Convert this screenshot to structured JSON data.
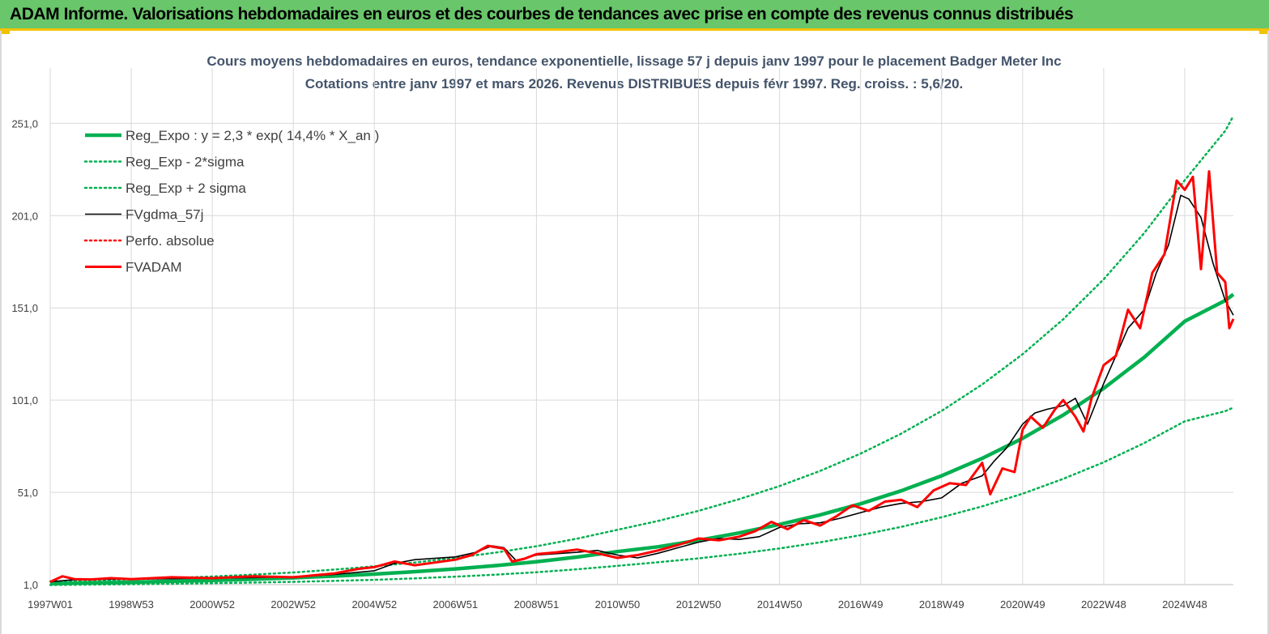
{
  "banner": {
    "title": "ADAM Informe. Valorisations hebdomadaires en euros et des courbes de tendances avec prise en compte des revenus connus distribués"
  },
  "colors": {
    "banner_bg": "#69c66a",
    "banner_border": "#f2c200",
    "reg_expo": "#00b050",
    "fvgdma": "#000000",
    "fvadam": "#ff0000",
    "perfo": "#ff0000",
    "gridline": "#d9d9d9",
    "title_text": "#44546a"
  },
  "chart_data": {
    "type": "line",
    "title": "Cours moyens hebdomadaires en euros, tendance exponentielle, lissage 57 j depuis janv 1997 pour le placement Badger Meter Inc",
    "subtitle": "Cotations entre janv 1997 et mars 2026. Revenus DISTRIBUES depuis févr 1997. Reg. croiss. : 5,6/20.",
    "xlabel": "",
    "ylabel": "",
    "x_range": [
      1997.0,
      2026.2
    ],
    "ylim": [
      1.0,
      281.0
    ],
    "y_ticks": [
      "1,0",
      "51,0",
      "101,0",
      "151,0",
      "201,0",
      "251,0"
    ],
    "y_tick_values": [
      1,
      51,
      101,
      151,
      201,
      251
    ],
    "x_ticks": [
      {
        "label": "1997W01",
        "x": 1997.0
      },
      {
        "label": "1998W53",
        "x": 1999.0
      },
      {
        "label": "2000W52",
        "x": 2001.0
      },
      {
        "label": "2002W52",
        "x": 2003.0
      },
      {
        "label": "2004W52",
        "x": 2005.0
      },
      {
        "label": "2006W51",
        "x": 2007.0
      },
      {
        "label": "2008W51",
        "x": 2009.0
      },
      {
        "label": "2010W50",
        "x": 2011.0
      },
      {
        "label": "2012W50",
        "x": 2013.0
      },
      {
        "label": "2014W50",
        "x": 2015.0
      },
      {
        "label": "2016W49",
        "x": 2017.0
      },
      {
        "label": "2018W49",
        "x": 2019.0
      },
      {
        "label": "2020W49",
        "x": 2021.0
      },
      {
        "label": "2022W48",
        "x": 2023.0
      },
      {
        "label": "2024W48",
        "x": 2025.0
      }
    ],
    "grid": true,
    "legend_position": "top-left",
    "series": [
      {
        "name": "Reg_Expo : y = 2,3 * exp( 14,4% *  X_an )",
        "style": "solid-thick",
        "color": "#00b050",
        "x": [
          1997,
          1998,
          1999,
          2000,
          2001,
          2002,
          2003,
          2004,
          2005,
          2006,
          2007,
          2008,
          2009,
          2010,
          2011,
          2012,
          2013,
          2014,
          2015,
          2016,
          2017,
          2018,
          2019,
          2020,
          2021,
          2022,
          2023,
          2024,
          2025,
          2026,
          2026.2
        ],
        "y": [
          1.5,
          1.9,
          2.3,
          2.8,
          3.3,
          3.9,
          4.7,
          5.6,
          6.7,
          8.0,
          9.5,
          11.3,
          13.4,
          15.9,
          18.9,
          21.5,
          25.0,
          29.0,
          33.6,
          38.8,
          44.8,
          51.8,
          60.0,
          69.4,
          80.3,
          92.9,
          107.4,
          124.2,
          143.7,
          155.0,
          158.3
        ]
      },
      {
        "name": "Reg_Exp - 2*sigma",
        "style": "dotted",
        "color": "#00b050",
        "x": [
          1997,
          1998,
          1999,
          2000,
          2001,
          2002,
          2003,
          2004,
          2005,
          2006,
          2007,
          2008,
          2009,
          2010,
          2011,
          2012,
          2013,
          2014,
          2015,
          2016,
          2017,
          2018,
          2019,
          2020,
          2021,
          2022,
          2023,
          2024,
          2025,
          2026,
          2026.2
        ],
        "y": [
          0.8,
          1.0,
          1.2,
          1.5,
          1.8,
          2.1,
          2.5,
          3.0,
          3.6,
          4.4,
          5.3,
          6.4,
          7.7,
          9.3,
          11.2,
          13.1,
          15.2,
          17.7,
          20.6,
          23.9,
          27.8,
          32.3,
          37.5,
          43.4,
          50.3,
          58.3,
          67.3,
          77.7,
          89.5,
          95.0,
          97.0
        ]
      },
      {
        "name": "Reg_Exp + 2 sigma",
        "style": "dotted",
        "color": "#00b050",
        "x": [
          1997,
          1998,
          1999,
          2000,
          2001,
          2002,
          2003,
          2004,
          2005,
          2006,
          2007,
          2008,
          2009,
          2010,
          2011,
          2012,
          2013,
          2014,
          2015,
          2016,
          2017,
          2018,
          2019,
          2020,
          2021,
          2022,
          2023,
          2024,
          2025,
          2026,
          2026.2
        ],
        "y": [
          2.7,
          3.3,
          3.9,
          4.6,
          5.4,
          6.4,
          7.6,
          9.1,
          10.9,
          13.0,
          15.5,
          18.4,
          21.8,
          25.9,
          30.7,
          35.5,
          41.0,
          47.3,
          54.4,
          62.6,
          72.0,
          82.8,
          95.2,
          109.5,
          125.9,
          144.8,
          166.5,
          191.5,
          220.2,
          247.0,
          255.0
        ]
      },
      {
        "name": "FVgdma_57j",
        "style": "solid",
        "color": "#000000",
        "x": [
          1997,
          1997.5,
          1998,
          1999,
          2000,
          2001,
          2002,
          2003,
          2004,
          2005,
          2005.5,
          2006,
          2007,
          2007.5,
          2007.9,
          2008.2,
          2008.5,
          2009,
          2010,
          2010.5,
          2011,
          2011.5,
          2012,
          2012.5,
          2013,
          2013.5,
          2014,
          2014.5,
          2015,
          2015.5,
          2016,
          2016.5,
          2017,
          2017.5,
          2018,
          2018.5,
          2019,
          2019.5,
          2020,
          2020.3,
          2020.6,
          2021,
          2021.3,
          2021.6,
          2022,
          2022.3,
          2022.6,
          2023,
          2023.3,
          2023.6,
          2024,
          2024.3,
          2024.6,
          2024.9,
          2025.1,
          2025.4,
          2025.7,
          2026,
          2026.2
        ],
        "y": [
          2.5,
          3.5,
          3.8,
          4.0,
          4.2,
          4.5,
          4.8,
          5.2,
          6.5,
          8.5,
          12.5,
          14.5,
          16.0,
          18.5,
          22.0,
          21.0,
          14.0,
          17.0,
          18.5,
          19.5,
          17.0,
          15.5,
          18.0,
          21.0,
          24.0,
          26.0,
          25.5,
          27.0,
          32.0,
          34.0,
          34.5,
          37.0,
          40.0,
          43.0,
          45.0,
          46.0,
          48.0,
          56.0,
          60.0,
          68.0,
          75.0,
          88.0,
          94.0,
          96.0,
          98.0,
          102.0,
          88.0,
          110.0,
          125.0,
          140.0,
          150.0,
          170.0,
          185.0,
          212.0,
          210.0,
          200.0,
          175.0,
          155.0,
          147.0
        ]
      },
      {
        "name": "Perfo. absolue",
        "style": "dotted",
        "color": "#ff0000",
        "x": [],
        "y": []
      },
      {
        "name": "FVADAM",
        "style": "solid-thick",
        "color": "#ff0000",
        "x": [
          1997,
          1997.3,
          1997.6,
          1998,
          1998.5,
          1999,
          2000,
          2001,
          2002,
          2003,
          2004,
          2004.6,
          2005,
          2005.5,
          2006,
          2006.5,
          2007,
          2007.4,
          2007.8,
          2008.2,
          2008.4,
          2008.7,
          2009,
          2009.5,
          2010,
          2010.5,
          2011,
          2011.5,
          2012,
          2012.5,
          2013,
          2013.5,
          2014,
          2014.4,
          2014.8,
          2015.2,
          2015.6,
          2016,
          2016.4,
          2016.8,
          2017.2,
          2017.6,
          2018,
          2018.4,
          2018.8,
          2019.2,
          2019.6,
          2020,
          2020.2,
          2020.5,
          2020.8,
          2021,
          2021.2,
          2021.5,
          2021.8,
          2022,
          2022.3,
          2022.5,
          2022.7,
          2023,
          2023.3,
          2023.6,
          2023.9,
          2024.2,
          2024.5,
          2024.8,
          2025.0,
          2025.2,
          2025.4,
          2025.6,
          2025.8,
          2026.0,
          2026.1,
          2026.2
        ],
        "y": [
          2.5,
          5.5,
          4.0,
          3.8,
          4.5,
          4.0,
          5.0,
          4.5,
          5.5,
          5.0,
          7.0,
          9.5,
          10.5,
          13.5,
          11.5,
          13.0,
          14.5,
          17.0,
          22.0,
          20.5,
          13.5,
          15.0,
          17.5,
          18.5,
          20.0,
          18.0,
          15.5,
          17.0,
          19.5,
          22.5,
          26.0,
          25.0,
          27.0,
          30.0,
          35.0,
          31.0,
          36.0,
          33.0,
          38.0,
          44.0,
          41.0,
          46.0,
          47.0,
          43.0,
          52.0,
          56.0,
          55.0,
          67.0,
          50.0,
          64.0,
          62.0,
          85.0,
          92.0,
          86.0,
          96.0,
          101.0,
          92.0,
          84.0,
          102.0,
          120.0,
          125.0,
          150.0,
          140.0,
          170.0,
          180.0,
          220.0,
          215.0,
          222.0,
          172.0,
          225.0,
          170.0,
          165.0,
          140.0,
          145.0
        ]
      }
    ]
  }
}
